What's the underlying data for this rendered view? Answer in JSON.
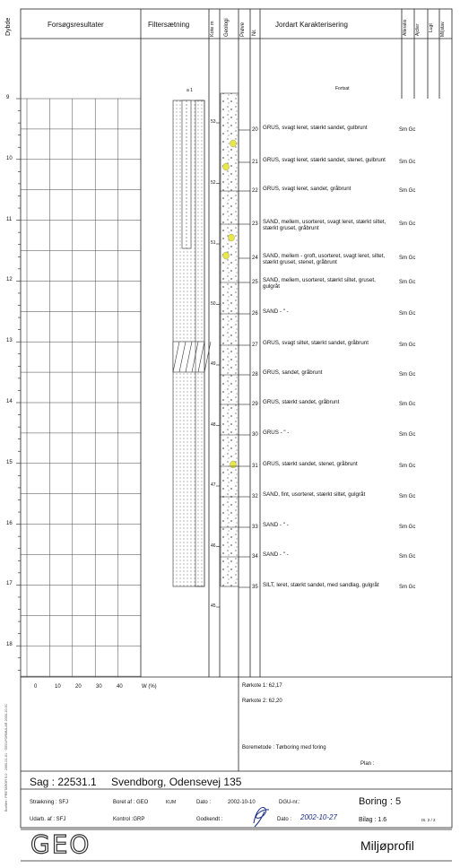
{
  "header": {
    "dybde_label": "Dybde",
    "forsog_label": "Forsøgsresultater",
    "filter_label": "Filtersætning",
    "kote_label": "Kote m",
    "geologi_label": "Geologi",
    "prove_label": "Prøve",
    "nr_label": "Nr.",
    "jordart_label": "Jordart  Karakterisering",
    "alder_label": "Alteratio",
    "aflejr_label": "Ajclier",
    "lugt_label": "Lugt",
    "miljo_label": "Miljstav."
  },
  "fortsat_label": "Fortsat",
  "filter_top_mark": "a 1",
  "depth_ticks": [
    "9",
    "10",
    "11",
    "12",
    "13",
    "14",
    "15",
    "16",
    "17",
    "18"
  ],
  "kote_ticks": [
    "53",
    "52",
    "51",
    "50",
    "49",
    "48",
    "47",
    "46",
    "45"
  ],
  "samples": [
    {
      "nr": "20",
      "desc": "GRUS, svagt leret, stærkt sandet, gulbrunt",
      "code": "Sm Gc"
    },
    {
      "nr": "21",
      "desc": "GRUS, svagt leret, stærkt sandet, stenet, gulbrunt",
      "code": "Sm Gc"
    },
    {
      "nr": "22",
      "desc": "GRUS, svagt leret, sandet, gråbrunt",
      "code": "Sm Gc"
    },
    {
      "nr": "23",
      "desc": "SAND, mellem, usorteret, svagt leret, stærkt siltet, stærkt gruset, gråbrunt",
      "code": "Sm Gc"
    },
    {
      "nr": "24",
      "desc": "SAND, mellem - groft, usorteret, svagt leret, siltet, stærkt gruset, stenet, gråbrunt",
      "code": "Sm Gc"
    },
    {
      "nr": "25",
      "desc": "SAND, mellem, usorteret, stærkt siltet, gruset, gulgråt",
      "code": "Sm Gc"
    },
    {
      "nr": "26",
      "desc": "SAND  - \" -",
      "code": "Sm Gc"
    },
    {
      "nr": "27",
      "desc": "GRUS, svagt siltet, stærkt sandet, gråbrunt",
      "code": "Sm Gc"
    },
    {
      "nr": "28",
      "desc": "GRUS, sandet, gråbrunt",
      "code": "Sm Gc"
    },
    {
      "nr": "29",
      "desc": "GRUS, stærkt sandet, gråbrunt",
      "code": "Sm Gc"
    },
    {
      "nr": "30",
      "desc": "GRUS  - \" -",
      "code": "Sm Gc"
    },
    {
      "nr": "31",
      "desc": "GRUS, stærkt sandet, stenet, gråbrunt",
      "code": "Sm Gc"
    },
    {
      "nr": "32",
      "desc": "SAND, fint, usorteret, stærkt siltet, gulgråt",
      "code": "Sm Gc"
    },
    {
      "nr": "33",
      "desc": "SAND  - \" -",
      "code": "Sm Gc"
    },
    {
      "nr": "34",
      "desc": "SAND  - \" -",
      "code": "Sm Gc"
    },
    {
      "nr": "35",
      "desc": "SILT, leret, stærkt sandet, med sandlag, gulgråt",
      "code": "Sm Gc"
    }
  ],
  "x_axis": {
    "ticks": [
      "0",
      "10",
      "20",
      "30",
      "40"
    ],
    "unit": "W (%)"
  },
  "rorkote1": "Rørkote 1: 62,17",
  "rorkote2": "Rørkote 2: 62,20",
  "boremetode": "Boremetode : Tørboring med foring",
  "plan": "Plan :",
  "footer": {
    "sag": "Sag :  22531.1",
    "location": "Svendborg, Odensevej 135",
    "straekning": "Strækning : SFJ",
    "boret_af": "Boret af : GEO",
    "boret_af_suffix": "KUM",
    "dato_label": "Dato :",
    "dato_value": "2002-10-10",
    "dgu": "DGU-nr.:",
    "boring": "Boring :  5",
    "udarb": "Udarb. af :  SFJ",
    "kontrol": "Kontrol :GRP",
    "godkendt": "Godkendt :",
    "dato2_label": "Dato :",
    "dato2_value": "2002-10-27",
    "bilag": "Bilag : 1.6",
    "page": "IS. 2 / 2",
    "logo": "GEO",
    "title": "Miljøprofil"
  },
  "side_text": "Borfiler : PRETAROR 5.0 · 2000-01-01 · GEO-FORMULAR 2000-10-01"
}
